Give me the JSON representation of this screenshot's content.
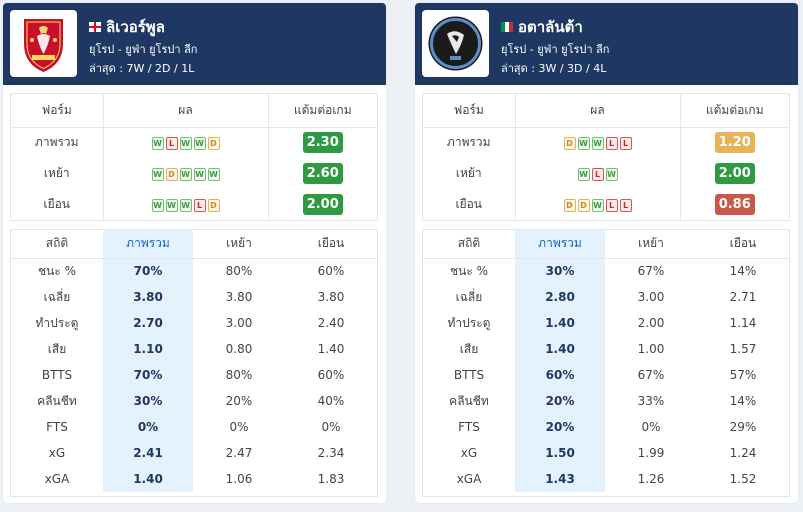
{
  "colors": {
    "header": "#1f3863",
    "win": "#72c06c",
    "loss": "#d9534f",
    "draw": "#e3b25c",
    "ppg_good": "#2e9b43",
    "ppg_mid": "#e6b455",
    "ppg_bad": "#c9574a",
    "highlight": "#e3f2fd"
  },
  "form_headers": [
    "ฟอร์ม",
    "ผล",
    "แต้มต่อเกม"
  ],
  "stats_headers": [
    "สถิติ",
    "ภาพรวม",
    "เหย้า",
    "เยือน"
  ],
  "teams": [
    {
      "name": "ลิเวอร์พูล",
      "flag": "england-flag",
      "league": "ยุโรป - ยูฟ่า ยูโรปา ลีก",
      "recent": "ล่าสุด : 7W / 2D / 1L",
      "logo_text": "LIVERPOOL",
      "form": [
        {
          "label": "ภาพรวม",
          "results": [
            "W",
            "L",
            "W",
            "W",
            "D"
          ],
          "ppg": "2.30",
          "level": "g"
        },
        {
          "label": "เหย้า",
          "results": [
            "W",
            "D",
            "W",
            "W",
            "W"
          ],
          "ppg": "2.60",
          "level": "g"
        },
        {
          "label": "เยือน",
          "results": [
            "W",
            "W",
            "W",
            "L",
            "D"
          ],
          "ppg": "2.00",
          "level": "g"
        }
      ],
      "stats": [
        {
          "label": "ชนะ %",
          "overall": "70%",
          "home": "80%",
          "away": "60%"
        },
        {
          "label": "เฉลี่ย",
          "overall": "3.80",
          "home": "3.80",
          "away": "3.80"
        },
        {
          "label": "ทำประตู",
          "overall": "2.70",
          "home": "3.00",
          "away": "2.40"
        },
        {
          "label": "เสีย",
          "overall": "1.10",
          "home": "0.80",
          "away": "1.40"
        },
        {
          "label": "BTTS",
          "overall": "70%",
          "home": "80%",
          "away": "60%"
        },
        {
          "label": "คลีนชีท",
          "overall": "30%",
          "home": "20%",
          "away": "40%"
        },
        {
          "label": "FTS",
          "overall": "0%",
          "home": "0%",
          "away": "0%"
        },
        {
          "label": "xG",
          "overall": "2.41",
          "home": "2.47",
          "away": "2.34"
        },
        {
          "label": "xGA",
          "overall": "1.40",
          "home": "1.06",
          "away": "1.83"
        }
      ]
    },
    {
      "name": "อตาลันต้า",
      "flag": "italy-flag",
      "league": "ยุโรป - ยูฟ่า ยูโรปา ลีก",
      "recent": "ล่าสุด : 3W / 3D / 4L",
      "logo_text": "ATALANTA 1907",
      "form": [
        {
          "label": "ภาพรวม",
          "results": [
            "D",
            "W",
            "W",
            "L",
            "L"
          ],
          "ppg": "1.20",
          "level": "y"
        },
        {
          "label": "เหย้า",
          "results": [
            "W",
            "L",
            "W"
          ],
          "ppg": "2.00",
          "level": "g"
        },
        {
          "label": "เยือน",
          "results": [
            "D",
            "D",
            "W",
            "L",
            "L"
          ],
          "ppg": "0.86",
          "level": "r"
        }
      ],
      "stats": [
        {
          "label": "ชนะ %",
          "overall": "30%",
          "home": "67%",
          "away": "14%"
        },
        {
          "label": "เฉลี่ย",
          "overall": "2.80",
          "home": "3.00",
          "away": "2.71"
        },
        {
          "label": "ทำประตู",
          "overall": "1.40",
          "home": "2.00",
          "away": "1.14"
        },
        {
          "label": "เสีย",
          "overall": "1.40",
          "home": "1.00",
          "away": "1.57"
        },
        {
          "label": "BTTS",
          "overall": "60%",
          "home": "67%",
          "away": "57%"
        },
        {
          "label": "คลีนชีท",
          "overall": "20%",
          "home": "33%",
          "away": "14%"
        },
        {
          "label": "FTS",
          "overall": "20%",
          "home": "0%",
          "away": "29%"
        },
        {
          "label": "xG",
          "overall": "1.50",
          "home": "1.99",
          "away": "1.24"
        },
        {
          "label": "xGA",
          "overall": "1.43",
          "home": "1.26",
          "away": "1.52"
        }
      ]
    }
  ]
}
